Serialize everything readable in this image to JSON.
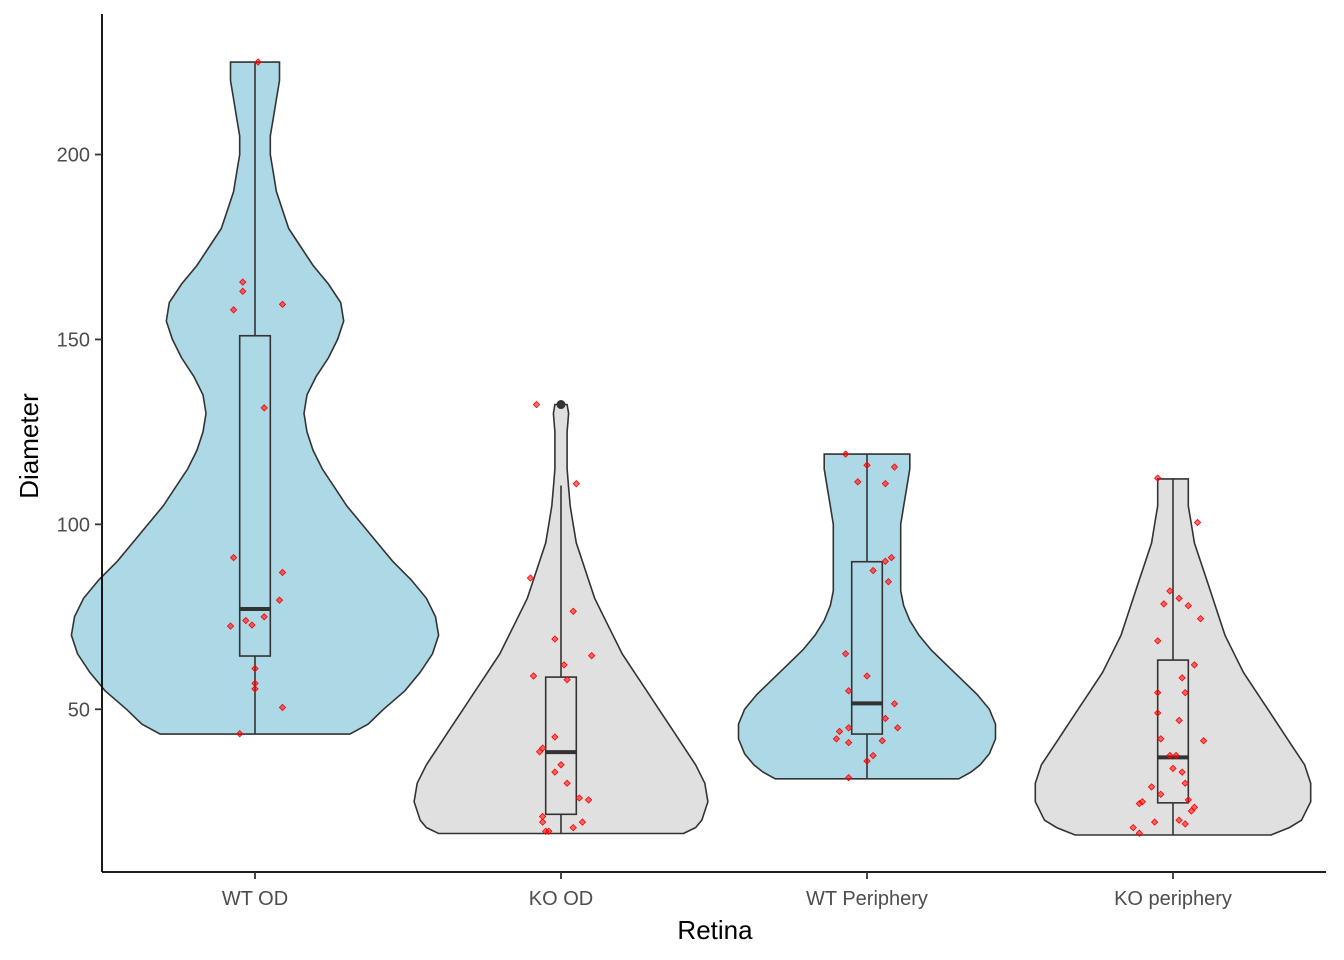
{
  "chart_data": {
    "type": "violin",
    "xlabel": "Retina",
    "ylabel": "Diameter",
    "ylim": [
      6,
      238
    ],
    "yticks": [
      50,
      100,
      150,
      200
    ],
    "grid": false,
    "legend": "none",
    "colors": {
      "wt_fill": "#add8e6",
      "ko_fill": "#e0e0e0",
      "outline": "#333333",
      "points": "#ff0000",
      "axis": "#000000"
    },
    "categories": [
      "WT OD",
      "KO OD",
      "WT Periphery",
      "KO periphery"
    ],
    "groups": [
      {
        "name": "WT OD",
        "fill": "wt_fill",
        "min": 43.3,
        "q1": 64.4,
        "median": 77.1,
        "q3": 151.0,
        "max": 225.0,
        "outliers": [],
        "width_profile": [
          [
            43.3,
            0.31
          ],
          [
            46,
            0.37
          ],
          [
            50,
            0.42
          ],
          [
            55,
            0.49
          ],
          [
            60,
            0.54
          ],
          [
            65,
            0.58
          ],
          [
            70,
            0.6
          ],
          [
            75,
            0.59
          ],
          [
            80,
            0.56
          ],
          [
            85,
            0.51
          ],
          [
            90,
            0.45
          ],
          [
            95,
            0.4
          ],
          [
            100,
            0.35
          ],
          [
            105,
            0.3
          ],
          [
            110,
            0.26
          ],
          [
            115,
            0.22
          ],
          [
            120,
            0.19
          ],
          [
            125,
            0.17
          ],
          [
            130,
            0.16
          ],
          [
            135,
            0.17
          ],
          [
            140,
            0.2
          ],
          [
            145,
            0.24
          ],
          [
            150,
            0.27
          ],
          [
            155,
            0.29
          ],
          [
            160,
            0.28
          ],
          [
            165,
            0.24
          ],
          [
            170,
            0.19
          ],
          [
            175,
            0.15
          ],
          [
            180,
            0.11
          ],
          [
            185,
            0.09
          ],
          [
            190,
            0.07
          ],
          [
            195,
            0.06
          ],
          [
            200,
            0.05
          ],
          [
            205,
            0.05
          ],
          [
            210,
            0.06
          ],
          [
            215,
            0.07
          ],
          [
            220,
            0.08
          ],
          [
            225,
            0.08
          ]
        ],
        "points": [
          [
            -0.05,
            43.4
          ],
          [
            -0.08,
            72.5
          ],
          [
            -0.03,
            74.0
          ],
          [
            -0.01,
            72.8
          ],
          [
            0.03,
            75.0
          ],
          [
            0.08,
            79.5
          ],
          [
            0.09,
            87.0
          ],
          [
            -0.07,
            91.0
          ],
          [
            0.09,
            50.5
          ],
          [
            0.0,
            55.5
          ],
          [
            0.0,
            57.0
          ],
          [
            0.0,
            61.0
          ],
          [
            0.03,
            131.5
          ],
          [
            -0.07,
            158.0
          ],
          [
            -0.04,
            163.0
          ],
          [
            -0.04,
            165.5
          ],
          [
            0.09,
            159.5
          ],
          [
            0.01,
            225.0
          ]
        ]
      },
      {
        "name": "KO OD",
        "fill": "ko_fill",
        "min": 16.4,
        "q1": 21.6,
        "median": 38.4,
        "q3": 58.7,
        "max": 110.5,
        "outliers": [
          132.4
        ],
        "width_profile": [
          [
            16.4,
            0.4
          ],
          [
            18,
            0.44
          ],
          [
            20,
            0.46
          ],
          [
            25,
            0.48
          ],
          [
            30,
            0.47
          ],
          [
            35,
            0.44
          ],
          [
            40,
            0.4
          ],
          [
            45,
            0.36
          ],
          [
            50,
            0.32
          ],
          [
            55,
            0.28
          ],
          [
            60,
            0.24
          ],
          [
            65,
            0.2
          ],
          [
            70,
            0.17
          ],
          [
            75,
            0.14
          ],
          [
            80,
            0.11
          ],
          [
            85,
            0.09
          ],
          [
            90,
            0.07
          ],
          [
            95,
            0.05
          ],
          [
            100,
            0.04
          ],
          [
            105,
            0.03
          ],
          [
            110,
            0.025
          ],
          [
            115,
            0.02
          ],
          [
            120,
            0.02
          ],
          [
            125,
            0.02
          ],
          [
            130,
            0.025
          ],
          [
            132.4,
            0.02
          ]
        ],
        "points": [
          [
            -0.08,
            132.4
          ],
          [
            0.05,
            111.0
          ],
          [
            -0.1,
            85.5
          ],
          [
            -0.02,
            69.0
          ],
          [
            0.04,
            76.5
          ],
          [
            0.1,
            64.5
          ],
          [
            0.01,
            62.0
          ],
          [
            -0.09,
            59.0
          ],
          [
            0.02,
            58.0
          ],
          [
            -0.02,
            42.5
          ],
          [
            -0.06,
            39.5
          ],
          [
            -0.07,
            38.5
          ],
          [
            0.0,
            35.0
          ],
          [
            -0.02,
            33.0
          ],
          [
            0.02,
            30.0
          ],
          [
            0.06,
            26.0
          ],
          [
            0.09,
            25.5
          ],
          [
            -0.06,
            21.0
          ],
          [
            -0.06,
            19.5
          ],
          [
            0.07,
            19.5
          ],
          [
            0.04,
            18.0
          ],
          [
            -0.04,
            17.0
          ],
          [
            -0.05,
            17.0
          ]
        ]
      },
      {
        "name": "WT Periphery",
        "fill": "wt_fill",
        "min": 31.2,
        "q1": 43.3,
        "median": 51.6,
        "q3": 89.9,
        "max": 119.0,
        "outliers": [],
        "width_profile": [
          [
            31.2,
            0.3
          ],
          [
            33,
            0.34
          ],
          [
            35,
            0.37
          ],
          [
            38,
            0.4
          ],
          [
            42,
            0.42
          ],
          [
            46,
            0.42
          ],
          [
            50,
            0.4
          ],
          [
            54,
            0.36
          ],
          [
            58,
            0.31
          ],
          [
            62,
            0.26
          ],
          [
            66,
            0.21
          ],
          [
            70,
            0.17
          ],
          [
            74,
            0.14
          ],
          [
            78,
            0.12
          ],
          [
            82,
            0.11
          ],
          [
            86,
            0.11
          ],
          [
            90,
            0.11
          ],
          [
            95,
            0.11
          ],
          [
            100,
            0.11
          ],
          [
            105,
            0.12
          ],
          [
            110,
            0.13
          ],
          [
            115,
            0.14
          ],
          [
            119,
            0.14
          ]
        ],
        "points": [
          [
            -0.07,
            119.0
          ],
          [
            0.0,
            116.0
          ],
          [
            0.09,
            115.5
          ],
          [
            -0.03,
            111.5
          ],
          [
            0.06,
            111.0
          ],
          [
            0.08,
            91.0
          ],
          [
            0.06,
            90.0
          ],
          [
            0.02,
            87.5
          ],
          [
            0.07,
            84.5
          ],
          [
            -0.07,
            65.0
          ],
          [
            0.0,
            59.0
          ],
          [
            -0.06,
            55.0
          ],
          [
            0.09,
            51.5
          ],
          [
            0.06,
            47.5
          ],
          [
            -0.06,
            45.0
          ],
          [
            0.1,
            45.0
          ],
          [
            -0.09,
            44.0
          ],
          [
            -0.1,
            42.0
          ],
          [
            -0.06,
            41.0
          ],
          [
            0.05,
            41.5
          ],
          [
            0.02,
            37.5
          ],
          [
            0.0,
            36.0
          ],
          [
            -0.06,
            31.5
          ]
        ]
      },
      {
        "name": "KO periphery",
        "fill": "ko_fill",
        "min": 16.0,
        "q1": 24.7,
        "median": 37.0,
        "q3": 63.3,
        "max": 112.3,
        "outliers": [],
        "width_profile": [
          [
            16.0,
            0.32
          ],
          [
            18,
            0.38
          ],
          [
            20,
            0.42
          ],
          [
            25,
            0.45
          ],
          [
            30,
            0.45
          ],
          [
            35,
            0.43
          ],
          [
            40,
            0.39
          ],
          [
            45,
            0.35
          ],
          [
            50,
            0.31
          ],
          [
            55,
            0.27
          ],
          [
            60,
            0.23
          ],
          [
            65,
            0.2
          ],
          [
            70,
            0.17
          ],
          [
            75,
            0.15
          ],
          [
            80,
            0.13
          ],
          [
            85,
            0.11
          ],
          [
            90,
            0.09
          ],
          [
            95,
            0.07
          ],
          [
            100,
            0.06
          ],
          [
            105,
            0.05
          ],
          [
            110,
            0.05
          ],
          [
            112.3,
            0.05
          ]
        ],
        "points": [
          [
            -0.05,
            112.5
          ],
          [
            0.08,
            100.5
          ],
          [
            -0.01,
            82.0
          ],
          [
            0.02,
            80.0
          ],
          [
            -0.03,
            78.5
          ],
          [
            0.05,
            78.0
          ],
          [
            0.09,
            74.5
          ],
          [
            -0.05,
            68.5
          ],
          [
            0.07,
            62.0
          ],
          [
            0.03,
            58.5
          ],
          [
            -0.05,
            54.5
          ],
          [
            0.04,
            54.5
          ],
          [
            -0.05,
            49.0
          ],
          [
            0.02,
            47.0
          ],
          [
            -0.04,
            42.0
          ],
          [
            0.1,
            41.5
          ],
          [
            -0.01,
            37.5
          ],
          [
            0.01,
            37.5
          ],
          [
            0.0,
            34.0
          ],
          [
            0.03,
            33.0
          ],
          [
            0.04,
            30.0
          ],
          [
            -0.07,
            29.0
          ],
          [
            -0.04,
            27.0
          ],
          [
            0.05,
            25.5
          ],
          [
            -0.1,
            25.0
          ],
          [
            -0.11,
            24.5
          ],
          [
            0.07,
            23.5
          ],
          [
            0.06,
            22.5
          ],
          [
            0.02,
            20.0
          ],
          [
            -0.06,
            19.5
          ],
          [
            0.04,
            19.0
          ],
          [
            -0.13,
            18.0
          ],
          [
            -0.11,
            16.5
          ]
        ]
      }
    ]
  }
}
